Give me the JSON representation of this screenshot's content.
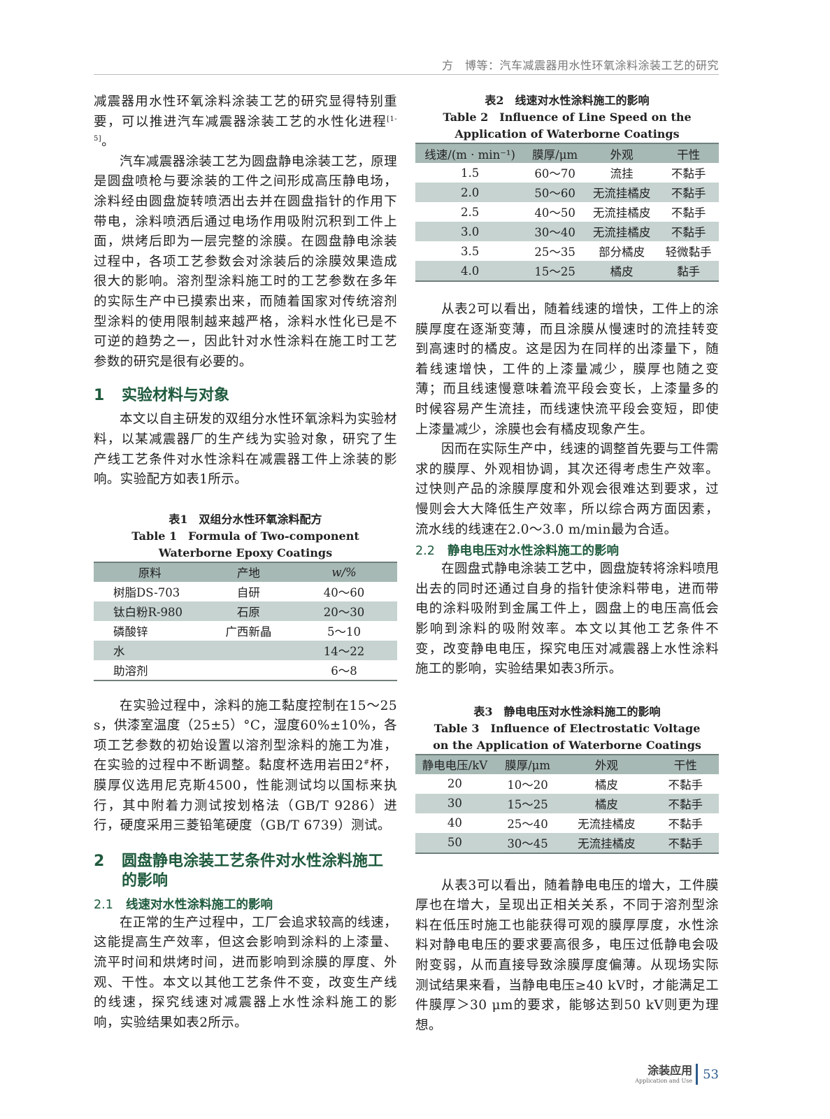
{
  "header": {
    "running_title": "方　博等：汽车减震器用水性环氧涂料涂装工艺的研究"
  },
  "left": {
    "p0": {
      "text": "减震器用水性环氧涂料涂装工艺的研究显得特别重要，可以推进汽车减震器涂装工艺的水性化进程",
      "cite": "[1-5]",
      "end": "。"
    },
    "p1": "汽车减震器涂装工艺为圆盘静电涂装工艺，原理是圆盘喷枪与要涂装的工件之间形成高压静电场，涂料经由圆盘旋转喷洒出去并在圆盘指针的作用下带电，涂料喷洒后通过电场作用吸附沉积到工件上面，烘烤后即为一层完整的涂膜。在圆盘静电涂装过程中，各项工艺参数会对涂装后的涂膜效果造成很大的影响。溶剂型涂料施工时的工艺参数在多年的实际生产中已摸索出来，而随着国家对传统溶剂型涂料的使用限制越来越严格，涂料水性化已是不可逆的趋势之一，因此针对水性涂料在施工时工艺参数的研究是很有必要的。",
    "h1": {
      "num": "1",
      "title": "实验材料与对象"
    },
    "p2": "本文以自主研发的双组分水性环氧涂料为实验材料，以某减震器厂的生产线为实验对象，研究了生产线工艺条件对水性涂料在减震器工件上涂装的影响。实验配方如表1所示。",
    "p3": {
      "a": "在实验过程中，涂料的施工黏度控制在15～25 s，供漆室温度（25±5）°C，湿度60%±10%，各项工艺参数的初始设置以溶剂型涂料的施工为准，在实验的过程中不断调整。黏度杯选用岩田2",
      "sup": "#",
      "b": "杯，膜厚仪选用尼克斯4500，性能测试均以国标来执行，其中附着力测试按划格法（GB/T 9286）进行，硬度采用三菱铅笔硬度（GB/T 6739）测试。"
    },
    "h2": {
      "num": "2",
      "title": "圆盘静电涂装工艺条件对水性涂料施工的影响"
    },
    "h21": {
      "num": "2.1",
      "title": "线速对水性涂料施工的影响"
    },
    "p4": "在正常的生产过程中，工厂会追求较高的线速，这能提高生产效率，但这会影响到涂料的上漆量、流平时间和烘烤时间，进而影响到涂膜的厚度、外观、干性。本文以其他工艺条件不变，改变生产线的线速，探究线速对减震器上水性涂料施工的影响，实验结果如表2所示。"
  },
  "table1": {
    "caption_cn": "表1　双组分水性环氧涂料配方",
    "caption_en": "Table 1　Formula of Two-component Waterborne Epoxy Coatings",
    "headers": [
      "原料",
      "产地",
      "w/%"
    ],
    "rows": [
      [
        "树脂DS-703",
        "自研",
        "40～60"
      ],
      [
        "钛白粉R-980",
        "石原",
        "20～30"
      ],
      [
        "磷酸锌",
        "广西新晶",
        "5～10"
      ],
      [
        "水",
        "",
        "14～22"
      ],
      [
        "助溶剂",
        "",
        "6～8"
      ]
    ]
  },
  "table2": {
    "caption_cn": "表2　线速对水性涂料施工的影响",
    "caption_en": "Table 2　Influence of Line Speed on the Application of Waterborne Coatings",
    "headers": [
      "线速/(m · min⁻¹)",
      "膜厚/μm",
      "外观",
      "干性"
    ],
    "rows": [
      [
        "1.5",
        "60～70",
        "流挂",
        "不黏手"
      ],
      [
        "2.0",
        "50～60",
        "无流挂橘皮",
        "不黏手"
      ],
      [
        "2.5",
        "40～50",
        "无流挂橘皮",
        "不黏手"
      ],
      [
        "3.0",
        "30～40",
        "无流挂橘皮",
        "不黏手"
      ],
      [
        "3.5",
        "25～35",
        "部分橘皮",
        "轻微黏手"
      ],
      [
        "4.0",
        "15～25",
        "橘皮",
        "黏手"
      ]
    ]
  },
  "table3": {
    "caption_cn": "表3　静电电压对水性涂料施工的影响",
    "caption_en": "Table 3　Influence of Electrostatic Voltage on the Application of Waterborne Coatings",
    "headers": [
      "静电电压/kV",
      "膜厚/μm",
      "外观",
      "干性"
    ],
    "rows": [
      [
        "20",
        "10～20",
        "橘皮",
        "不黏手"
      ],
      [
        "30",
        "15～25",
        "橘皮",
        "不黏手"
      ],
      [
        "40",
        "25～40",
        "无流挂橘皮",
        "不黏手"
      ],
      [
        "50",
        "30～45",
        "无流挂橘皮",
        "不黏手"
      ]
    ]
  },
  "right": {
    "p5": "从表2可以看出，随着线速的增快，工件上的涂膜厚度在逐渐变薄，而且涂膜从慢速时的流挂转变到高速时的橘皮。这是因为在同样的出漆量下，随着线速增快，工件的上漆量减少，膜厚也随之变薄；而且线速慢意味着流平段会变长，上漆量多的时候容易产生流挂，而线速快流平段会变短，即使上漆量减少，涂膜也会有橘皮现象产生。",
    "p6": "因而在实际生产中，线速的调整首先要与工件需求的膜厚、外观相协调，其次还得考虑生产效率。过快则产品的涂膜厚度和外观会很难达到要求，过慢则会大大降低生产效率，所以综合两方面因素，流水线的线速在2.0～3.0 m/min最为合适。",
    "h22": {
      "num": "2.2",
      "title": "静电电压对水性涂料施工的影响"
    },
    "p7": "在圆盘式静电涂装工艺中，圆盘旋转将涂料喷甩出去的同时还通过自身的指针使涂料带电，进而带电的涂料吸附到金属工件上，圆盘上的电压高低会影响到涂料的吸附效率。本文以其他工艺条件不变，改变静电电压，探究电压对减震器上水性涂料施工的影响，实验结果如表3所示。",
    "p8": "从表3可以看出，随着静电电压的增大，工件膜厚也在增大，呈现出正相关关系，不同于溶剂型涂料在低压时施工也能获得可观的膜厚厚度，水性涂料对静电电压的要求要高很多，电压过低静电会吸附变弱，从而直接导致涂膜厚度偏薄。从现场实际测试结果来看，当静电电压≥40 kV时，才能满足工件膜厚＞30 μm的要求，能够达到50 kV则更为理想。"
  },
  "footer": {
    "journal_cn": "涂装应用",
    "journal_en": "Application and Use",
    "page": "53",
    "accent": "#2d5b8c"
  }
}
